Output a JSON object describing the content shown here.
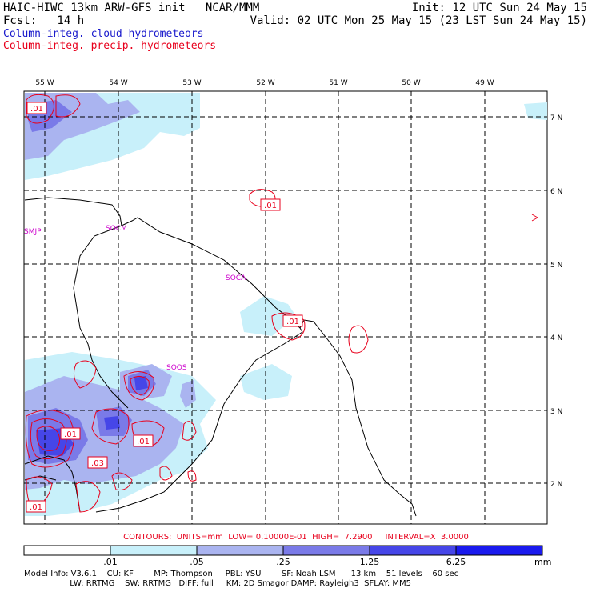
{
  "header": {
    "title": "HAIC-HIWC 13km ARW-GFS init   NCAR/MMM",
    "init": "Init: 12 UTC Sun 24 May 15",
    "fcst": "Fcst:   14 h",
    "valid": "Valid: 02 UTC Mon 25 May 15 (23 LST Sun 24 May 15)"
  },
  "legend": {
    "cloud": "Column-integ. cloud hydrometeors",
    "precip": "Column-integ. precip. hydrometeors",
    "cloud_color": "#1a1acc",
    "precip_color": "#e8001c"
  },
  "axes": {
    "lon_labels": [
      "55 W",
      "54 W",
      "53 W",
      "52 W",
      "51 W",
      "50 W",
      "49 W"
    ],
    "lat_labels": [
      "7 N",
      "6 N",
      "5 N",
      "4 N",
      "3 N",
      "2 N"
    ]
  },
  "stations": [
    "SMJP",
    "SOCM",
    "SOCA",
    "SOOS"
  ],
  "contour_labels": [
    ".01",
    ".01",
    ".01",
    ".01",
    ".03",
    ".01",
    ".01"
  ],
  "contours_line": "CONTOURS:  UNITS=mm  LOW= 0.10000E-01  HIGH=  7.2900     INTERVAL=X  3.0000",
  "colorbar": {
    "labels": [
      ".01",
      ".05",
      ".25",
      "1.25",
      "6.25"
    ],
    "units": "mm",
    "colors": [
      "#ffffff",
      "#c8f0fa",
      "#aab4f0",
      "#7a7ae8",
      "#4646e8",
      "#1a1aee"
    ]
  },
  "model_info": {
    "line1": "Model Info: V3.6.1    CU: KF        MP: Thompson     PBL: YSU        SF: Noah LSM      13 km    51 levels    60 sec",
    "line2": "                  LW: RRTMG    SW: RRTMG   DIFF: full     KM: 2D Smagor DAMP: Rayleigh3  SFLAY: MM5"
  }
}
